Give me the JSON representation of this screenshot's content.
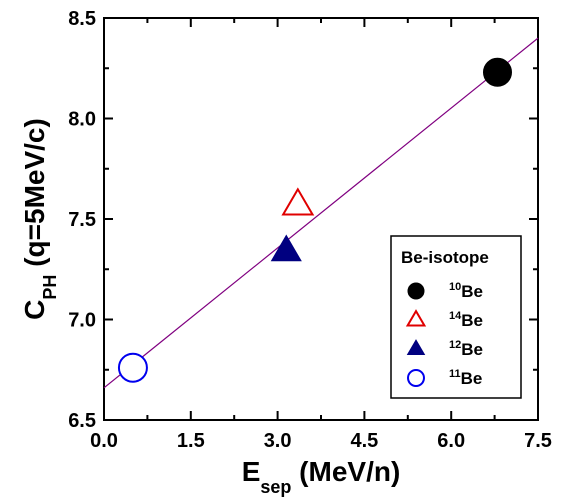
{
  "chart_data": {
    "type": "scatter",
    "xlabel": {
      "main": "E",
      "sub": "sep",
      "rest": " (MeV/n)"
    },
    "ylabel": {
      "main": "C",
      "sub": "PH",
      "rest": " (q=5MeV/c)"
    },
    "xlim": [
      0.0,
      7.5
    ],
    "ylim": [
      6.5,
      8.5
    ],
    "xticks": [
      "0.0",
      "1.5",
      "3.0",
      "4.5",
      "6.0",
      "7.5"
    ],
    "yticks": [
      "6.5",
      "7.0",
      "7.5",
      "8.0",
      "8.5"
    ],
    "legend": {
      "title": "Be-isotope",
      "placement": "lower-right"
    },
    "series": [
      {
        "name_sup": "10",
        "name": "Be",
        "marker": "circle-filled",
        "color": "#000000",
        "x": 6.8,
        "y": 8.23
      },
      {
        "name_sup": "14",
        "name": "Be",
        "marker": "triangle-open",
        "color": "#e00000",
        "x": 3.35,
        "y": 7.57
      },
      {
        "name_sup": "12",
        "name": "Be",
        "marker": "triangle-filled",
        "color": "#000080",
        "x": 3.15,
        "y": 7.34
      },
      {
        "name_sup": "11",
        "name": "Be",
        "marker": "circle-open",
        "color": "#0000ee",
        "x": 0.5,
        "y": 6.76
      }
    ],
    "fit_line": {
      "color": "#800080",
      "x": [
        0.0,
        7.5
      ],
      "y": [
        6.66,
        8.4
      ]
    }
  }
}
